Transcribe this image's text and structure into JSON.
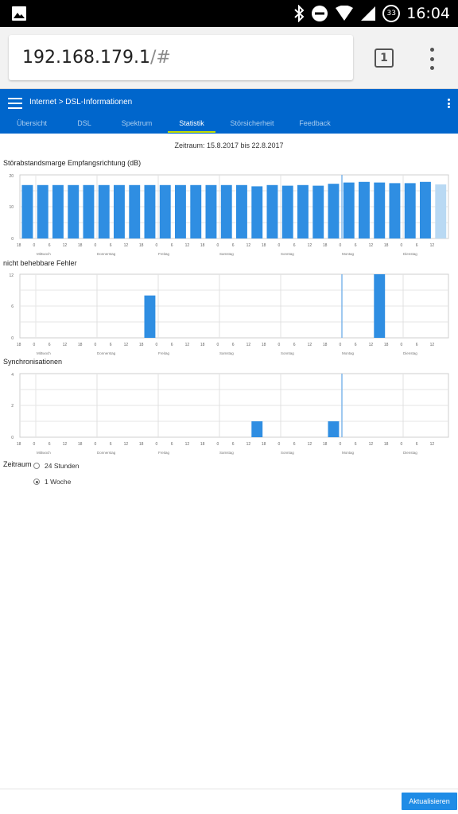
{
  "status_bar": {
    "time": "16:04",
    "battery_level": "33",
    "icons": [
      "gallery-icon",
      "bluetooth-icon",
      "dnd-icon",
      "wifi-icon",
      "signal-icon",
      "battery-icon"
    ]
  },
  "browser": {
    "url_host": "192.168.179.1",
    "url_hash": "/#",
    "tab_count": "1"
  },
  "app": {
    "breadcrumb": "Internet > DSL-Informationen",
    "accent_color": "#0066cc",
    "tabs": [
      {
        "label": "Übersicht",
        "active": false
      },
      {
        "label": "DSL",
        "active": false
      },
      {
        "label": "Spektrum",
        "active": false
      },
      {
        "label": "Statistik",
        "active": true
      },
      {
        "label": "Störsicherheit",
        "active": false
      },
      {
        "label": "Feedback",
        "active": false
      }
    ]
  },
  "period_text": "Zeitraum: 15.8.2017 bis 22.8.2017",
  "chart_data": [
    {
      "type": "bar",
      "title": "Störabstandsmarge Empfangsrichtung (dB)",
      "ylim": [
        0,
        20
      ],
      "yticks": [
        "20",
        "10",
        "0"
      ],
      "xticks": [
        "18",
        "0",
        "6",
        "12",
        "18",
        "0",
        "6",
        "12",
        "18",
        "0",
        "6",
        "12",
        "18",
        "0",
        "6",
        "12",
        "18",
        "0",
        "6",
        "12",
        "18",
        "0",
        "6",
        "12",
        "18",
        "0",
        "6",
        "12"
      ],
      "days": [
        "Mittwoch",
        "Donnerstag",
        "Freitag",
        "Samstag",
        "Sonntag",
        "Montag",
        "Dienstag"
      ],
      "values": [
        16.8,
        16.8,
        16.8,
        16.8,
        16.8,
        16.8,
        16.8,
        16.8,
        16.8,
        16.8,
        16.8,
        16.8,
        16.8,
        16.8,
        16.8,
        16.4,
        16.8,
        16.6,
        16.8,
        16.6,
        17.2,
        17.6,
        17.8,
        17.6,
        17.4,
        17.4,
        17.8,
        17.0
      ],
      "highlight_last": true
    },
    {
      "type": "bar",
      "title": "nicht behebbare Fehler",
      "ylim": [
        0,
        12
      ],
      "yticks": [
        "12",
        "6",
        "0"
      ],
      "xticks": [
        "18",
        "0",
        "6",
        "12",
        "18",
        "0",
        "6",
        "12",
        "18",
        "0",
        "6",
        "12",
        "18",
        "0",
        "6",
        "12",
        "18",
        "0",
        "6",
        "12",
        "18",
        "0",
        "6",
        "12",
        "18",
        "0",
        "6",
        "12"
      ],
      "days": [
        "Mittwoch",
        "Donnerstag",
        "Freitag",
        "Samstag",
        "Sonntag",
        "Montag",
        "Dienstag"
      ],
      "values": [
        0,
        0,
        0,
        0,
        0,
        0,
        0,
        0,
        8,
        0,
        0,
        0,
        0,
        0,
        0,
        0,
        0,
        0,
        0,
        0,
        0,
        0,
        0,
        12,
        0,
        0,
        0,
        0
      ],
      "highlight_last": false
    },
    {
      "type": "bar",
      "title": "Synchronisationen",
      "ylim": [
        0,
        4
      ],
      "yticks": [
        "4",
        "2",
        "0"
      ],
      "xticks": [
        "18",
        "0",
        "6",
        "12",
        "18",
        "0",
        "6",
        "12",
        "18",
        "0",
        "6",
        "12",
        "18",
        "0",
        "6",
        "12",
        "18",
        "0",
        "6",
        "12",
        "18",
        "0",
        "6",
        "12",
        "18",
        "0",
        "6",
        "12"
      ],
      "days": [
        "Mittwoch",
        "Donnerstag",
        "Freitag",
        "Samstag",
        "Sonntag",
        "Montag",
        "Dienstag"
      ],
      "values": [
        0,
        0,
        0,
        0,
        0,
        0,
        0,
        0,
        0,
        0,
        0,
        0,
        0,
        0,
        0,
        1,
        0,
        0,
        0,
        0,
        1,
        0,
        0,
        0,
        0,
        0,
        0,
        0
      ],
      "highlight_last": false
    }
  ],
  "period_control": {
    "label": "Zeitraum",
    "options": [
      {
        "label": "24 Stunden",
        "checked": false
      },
      {
        "label": "1 Woche",
        "checked": true
      }
    ]
  },
  "refresh_button": "Aktualisieren"
}
